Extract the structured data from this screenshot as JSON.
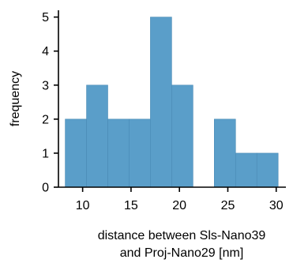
{
  "chart_data": {
    "type": "bar",
    "title": "",
    "xlabel_line1": "distance between Sls-Nano39",
    "xlabel_line2": "and Proj-Nano29 [nm]",
    "ylabel": "frequency",
    "xlim": [
      7.5,
      31
    ],
    "ylim": [
      0,
      5.2
    ],
    "x_ticks": [
      10,
      15,
      20,
      25,
      30
    ],
    "y_ticks": [
      0,
      1,
      2,
      3,
      4,
      5
    ],
    "bin_edges": [
      8.2,
      10.4,
      12.6,
      14.8,
      17.0,
      19.2,
      21.4,
      23.6,
      25.8,
      28.0,
      30.2
    ],
    "values": [
      2,
      3,
      2,
      2,
      5,
      3,
      0,
      2,
      1,
      1
    ],
    "grid": false,
    "colors": {
      "bar": "#5a9ec9",
      "bar_edge": "#4a8ab5"
    }
  }
}
